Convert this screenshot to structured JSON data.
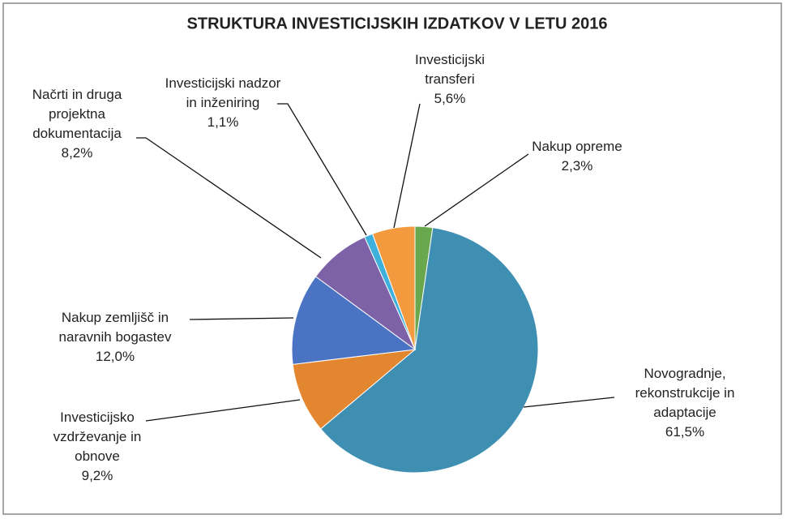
{
  "chart_data": {
    "type": "pie",
    "title": "STRUKTURA  INVESTICIJSKIH IZDATKOV  V LETU 2016",
    "categories": [
      [
        "Nakup opreme"
      ],
      [
        "Novogradnje,",
        "rekonstrukcije in",
        "adaptacije"
      ],
      [
        "Investicijsko",
        "vzdrževanje in",
        "obnove"
      ],
      [
        "Nakup zemljišč in",
        "naravnih bogastev"
      ],
      [
        "Načrti in druga",
        "projektna",
        "dokumentacija"
      ],
      [
        "Investicijski nadzor",
        "in inženiring"
      ],
      [
        "Investicijski",
        "transferi"
      ]
    ],
    "values": [
      2.3,
      61.5,
      9.2,
      12.0,
      8.2,
      1.1,
      5.6
    ],
    "value_labels": [
      "2,3%",
      "61,5%",
      "9,2%",
      "12,0%",
      "8,2%",
      "1,1%",
      "5,6%"
    ],
    "colors": [
      "#6aa84f",
      "#3f8fb3",
      "#e2862f",
      "#4a73c4",
      "#7d62a8",
      "#3fb0dc",
      "#f49a3e"
    ]
  }
}
